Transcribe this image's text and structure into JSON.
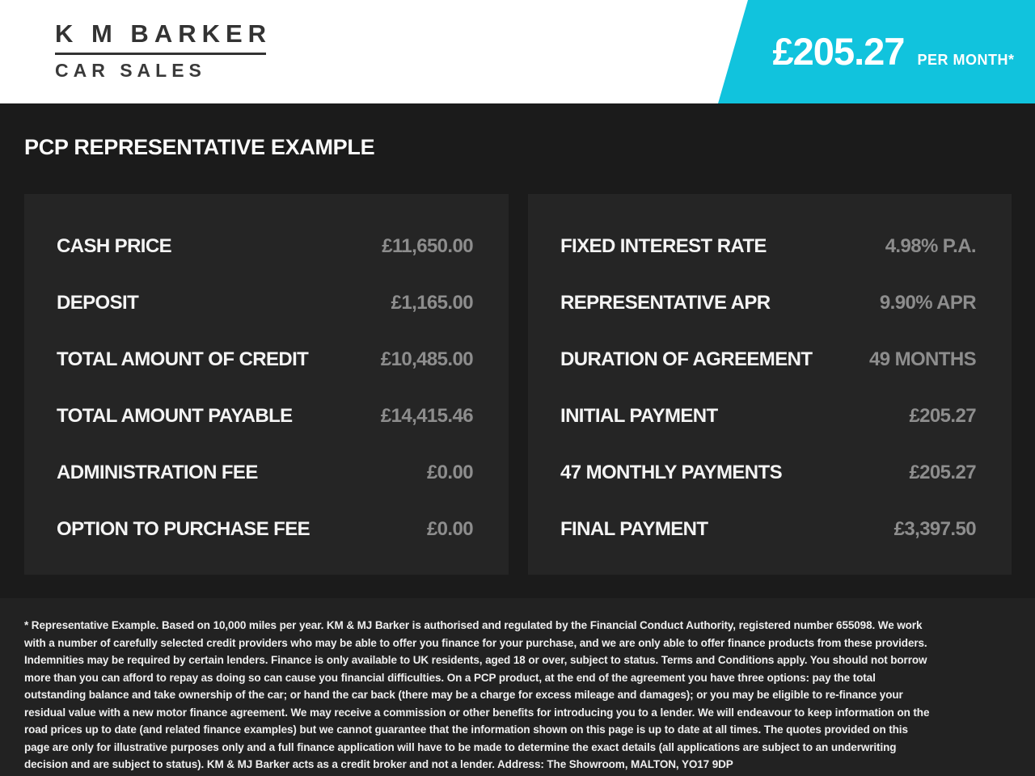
{
  "header": {
    "logo": {
      "line1": "K M BARKER",
      "line2": "CAR SALES"
    },
    "price_banner": {
      "amount": "£205.27",
      "period": "PER MONTH*"
    }
  },
  "page_title": "PCP REPRESENTATIVE EXAMPLE",
  "panels": {
    "left": {
      "rows": [
        {
          "label": "CASH PRICE",
          "value": "£11,650.00"
        },
        {
          "label": "DEPOSIT",
          "value": "£1,165.00"
        },
        {
          "label": "TOTAL AMOUNT OF CREDIT",
          "value": "£10,485.00"
        },
        {
          "label": "TOTAL AMOUNT PAYABLE",
          "value": "£14,415.46"
        },
        {
          "label": "ADMINISTRATION FEE",
          "value": "£0.00"
        },
        {
          "label": "OPTION TO PURCHASE FEE",
          "value": "£0.00"
        }
      ]
    },
    "right": {
      "rows": [
        {
          "label": "FIXED INTEREST RATE",
          "value": "4.98% P.A."
        },
        {
          "label": "REPRESENTATIVE APR",
          "value": "9.90% APR"
        },
        {
          "label": "DURATION OF AGREEMENT",
          "value": "49 MONTHS"
        },
        {
          "label": "INITIAL PAYMENT",
          "value": "£205.27"
        },
        {
          "label": "47 MONTHLY PAYMENTS",
          "value": "£205.27"
        },
        {
          "label": "FINAL PAYMENT",
          "value": "£3,397.50"
        }
      ]
    }
  },
  "footer": {
    "disclaimer": "* Representative Example. Based on 10,000 miles per year. KM & MJ Barker is authorised and regulated by the Financial Conduct Authority, registered number 655098. We work with a number of carefully selected credit providers who may be able to offer you finance for your purchase, and we are only able to offer finance products from these providers. Indemnities may be required by certain lenders. Finance is only available to UK residents, aged 18 or over, subject to status. Terms and Conditions apply. You should not borrow more than you can afford to repay as doing so can cause you financial difficulties. On a PCP product, at the end of the agreement you have three options: pay the total outstanding balance and take ownership of the car; or hand the car back (there may be a charge for excess mileage and damages); or you may be eligible to re-finance your residual value with a new motor finance agreement. We may receive a commission or other benefits for introducing you to a lender. We will endeavour to keep information on the road prices up to date (and related finance examples) but we cannot guarantee that the information shown on this page is up to date at all times. The quotes provided on this page are only for illustrative purposes only and a full finance application will have to be made to determine the exact details (all applications are subject to an underwriting decision and are subject to status). KM & MJ Barker acts as a credit broker and not a lender. Address: The Showroom, MALTON, YO17 9DP"
  },
  "colors": {
    "accent_cyan": "#11c3dd",
    "page_bg": "#1b1b1b",
    "panel_bg": "#252525",
    "footer_bg": "#222222",
    "label_text": "#f4f4f4",
    "value_text": "#8d8d8d",
    "logo_text": "#333333"
  }
}
